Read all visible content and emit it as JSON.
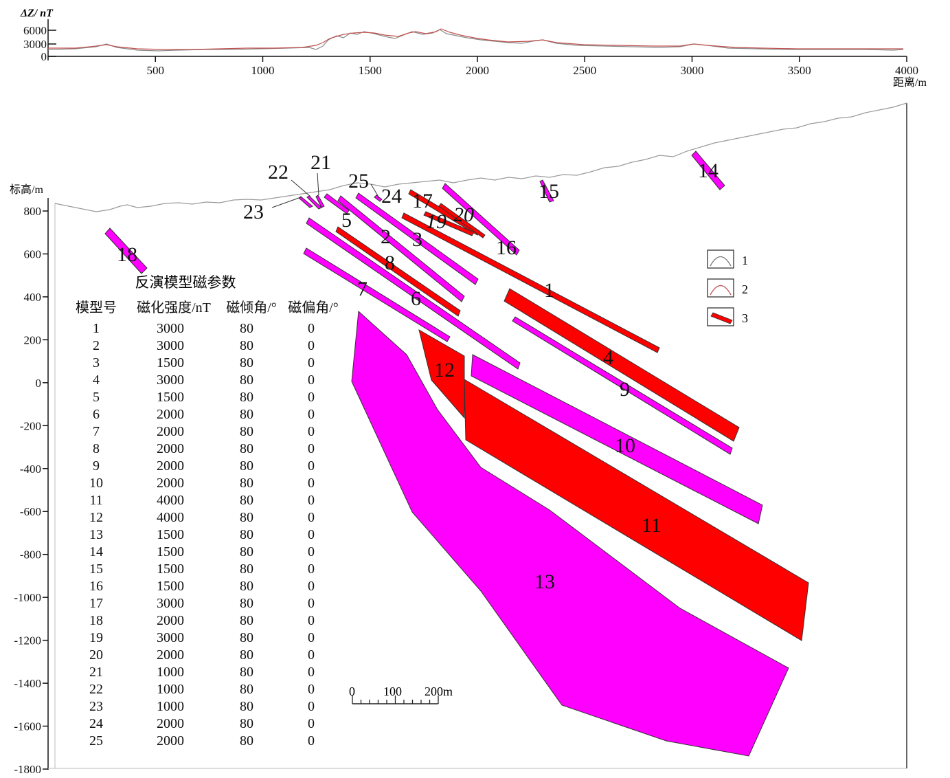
{
  "profile": {
    "ylabel": "ΔZ/ nT",
    "yticks": [
      6000,
      3000,
      0
    ],
    "xticks": [
      500,
      1000,
      1500,
      2000,
      2500,
      3000,
      3500,
      4000
    ],
    "xlabel": "距离/m"
  },
  "section": {
    "ylabel": "标高/m",
    "yticks": [
      800,
      600,
      400,
      200,
      0,
      -200,
      -400,
      -600,
      -800,
      -1000,
      -1200,
      -1400,
      -1600,
      -1800
    ]
  },
  "legend": [
    {
      "key": "1",
      "meaning": "observed-curve",
      "color": "#777777"
    },
    {
      "key": "2",
      "meaning": "calculated-curve",
      "color": "#c05050"
    },
    {
      "key": "3",
      "meaning": "red-body",
      "color": "#ff0000"
    }
  ],
  "colors": {
    "red_body": "#ff0000",
    "magenta_body": "#ff00ff",
    "outline": "#333333"
  },
  "bodies": {
    "labels": [
      "1",
      "2",
      "3",
      "4",
      "5",
      "6",
      "7",
      "8",
      "9",
      "10",
      "11",
      "12",
      "13",
      "14",
      "15",
      "16",
      "17",
      "18",
      "19",
      "20",
      "21",
      "22",
      "23",
      "24",
      "25"
    ]
  },
  "table": {
    "title": "反演模型磁参数",
    "headers": [
      "模型号",
      "磁化强度/nT",
      "磁倾角/°",
      "磁偏角/°"
    ],
    "rows": [
      [
        "1",
        "3000",
        "80",
        "0"
      ],
      [
        "2",
        "3000",
        "80",
        "0"
      ],
      [
        "3",
        "1500",
        "80",
        "0"
      ],
      [
        "4",
        "3000",
        "80",
        "0"
      ],
      [
        "5",
        "1500",
        "80",
        "0"
      ],
      [
        "6",
        "2000",
        "80",
        "0"
      ],
      [
        "7",
        "2000",
        "80",
        "0"
      ],
      [
        "8",
        "2000",
        "80",
        "0"
      ],
      [
        "9",
        "2000",
        "80",
        "0"
      ],
      [
        "10",
        "2000",
        "80",
        "0"
      ],
      [
        "11",
        "4000",
        "80",
        "0"
      ],
      [
        "12",
        "4000",
        "80",
        "0"
      ],
      [
        "13",
        "1500",
        "80",
        "0"
      ],
      [
        "14",
        "1500",
        "80",
        "0"
      ],
      [
        "15",
        "1500",
        "80",
        "0"
      ],
      [
        "16",
        "1500",
        "80",
        "0"
      ],
      [
        "17",
        "3000",
        "80",
        "0"
      ],
      [
        "18",
        "2000",
        "80",
        "0"
      ],
      [
        "19",
        "3000",
        "80",
        "0"
      ],
      [
        "20",
        "2000",
        "80",
        "0"
      ],
      [
        "21",
        "1000",
        "80",
        "0"
      ],
      [
        "22",
        "1000",
        "80",
        "0"
      ],
      [
        "23",
        "1000",
        "80",
        "0"
      ],
      [
        "24",
        "2000",
        "80",
        "0"
      ],
      [
        "25",
        "2000",
        "80",
        "0"
      ]
    ]
  },
  "scale_bar": {
    "labels": [
      "0",
      "100",
      "200m"
    ]
  }
}
